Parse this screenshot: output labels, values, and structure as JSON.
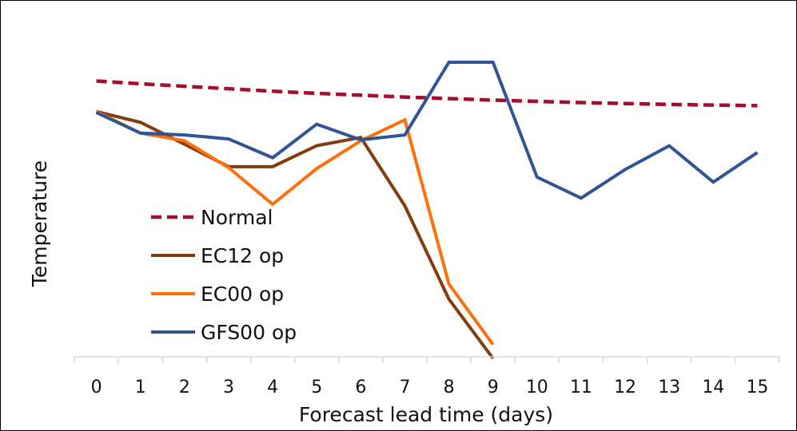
{
  "chart_data": {
    "type": "line",
    "title": "",
    "xlabel": "Forecast lead time (days)",
    "ylabel": "Temperature",
    "x": [
      0,
      1,
      2,
      3,
      4,
      5,
      6,
      7,
      8,
      9,
      10,
      11,
      12,
      13,
      14,
      15
    ],
    "xlim": [
      -0.5,
      15.5
    ],
    "ylim": [
      0,
      100
    ],
    "grid": false,
    "legend_position": "left",
    "series": [
      {
        "name": "Normal",
        "color": "#A50F2D",
        "dash": "dashed",
        "values": [
          89.5,
          88.6,
          87.8,
          87.0,
          86.2,
          85.5,
          84.9,
          84.3,
          83.8,
          83.3,
          82.9,
          82.5,
          82.2,
          81.9,
          81.7,
          81.5
        ]
      },
      {
        "name": "EC12 op",
        "color": "#843C0C",
        "dash": "solid",
        "values": [
          79.6,
          76.1,
          69.0,
          61.7,
          61.7,
          68.5,
          71.2,
          49.0,
          18.7,
          -0.5,
          null,
          null,
          null,
          null,
          null,
          null
        ]
      },
      {
        "name": "EC00 op",
        "color": "#FF6F0E",
        "dash": "solid",
        "values": [
          79.6,
          72.6,
          70.1,
          61.4,
          49.5,
          61.1,
          70.1,
          76.9,
          23.6,
          4.0,
          null,
          null,
          null,
          null,
          null,
          null
        ]
      },
      {
        "name": "GFS00 op",
        "color": "#2F5597",
        "dash": "solid",
        "values": [
          79.3,
          72.6,
          72.0,
          70.7,
          64.6,
          75.5,
          70.4,
          72.0,
          95.6,
          95.6,
          58.3,
          51.5,
          60.8,
          68.5,
          56.7,
          66.3
        ]
      }
    ]
  }
}
